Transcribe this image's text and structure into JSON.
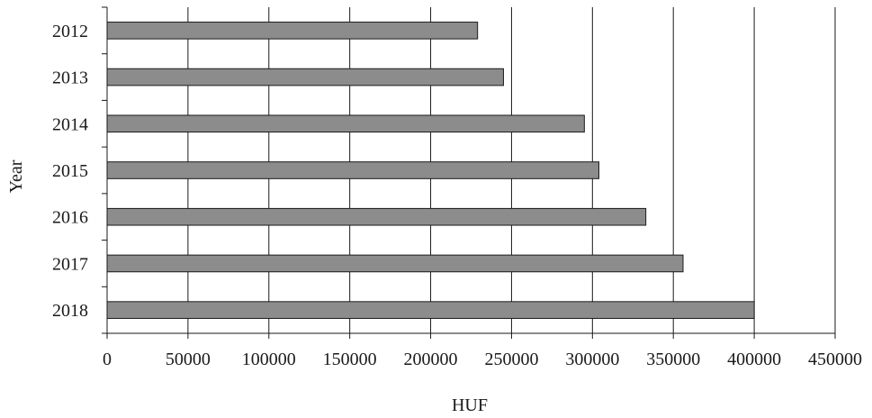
{
  "chart_data": {
    "type": "bar",
    "orientation": "horizontal",
    "categories": [
      "2012",
      "2013",
      "2014",
      "2015",
      "2016",
      "2017",
      "2018"
    ],
    "values": [
      229000,
      245000,
      295000,
      304000,
      333000,
      356000,
      400000
    ],
    "xlabel": "HUF",
    "ylabel": "Year",
    "xlim": [
      0,
      450000
    ],
    "x_ticks": [
      "0",
      "50000",
      "100000",
      "150000",
      "200000",
      "250000",
      "300000",
      "350000",
      "400000",
      "450000"
    ],
    "grid": "vertical",
    "bar_color": "#8c8c8c",
    "bar_edge_color": "#1a1a1a"
  }
}
